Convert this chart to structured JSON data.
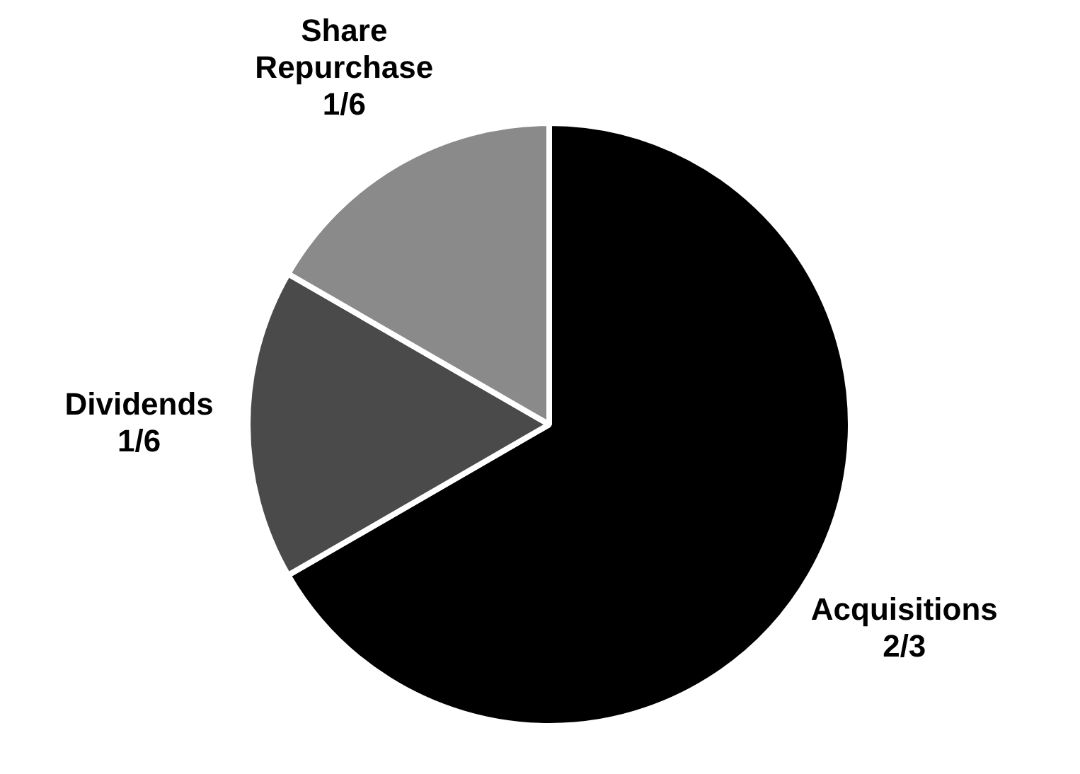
{
  "chart_data": {
    "type": "pie",
    "categories": [
      "Acquisitions",
      "Dividends",
      "Share Repurchase"
    ],
    "values": [
      0.6667,
      0.1667,
      0.1667
    ],
    "value_labels": [
      "2/3",
      "1/6",
      "1/6"
    ],
    "colors": [
      "#000000",
      "#4a4a4a",
      "#8a8a8a"
    ],
    "legend": false
  }
}
